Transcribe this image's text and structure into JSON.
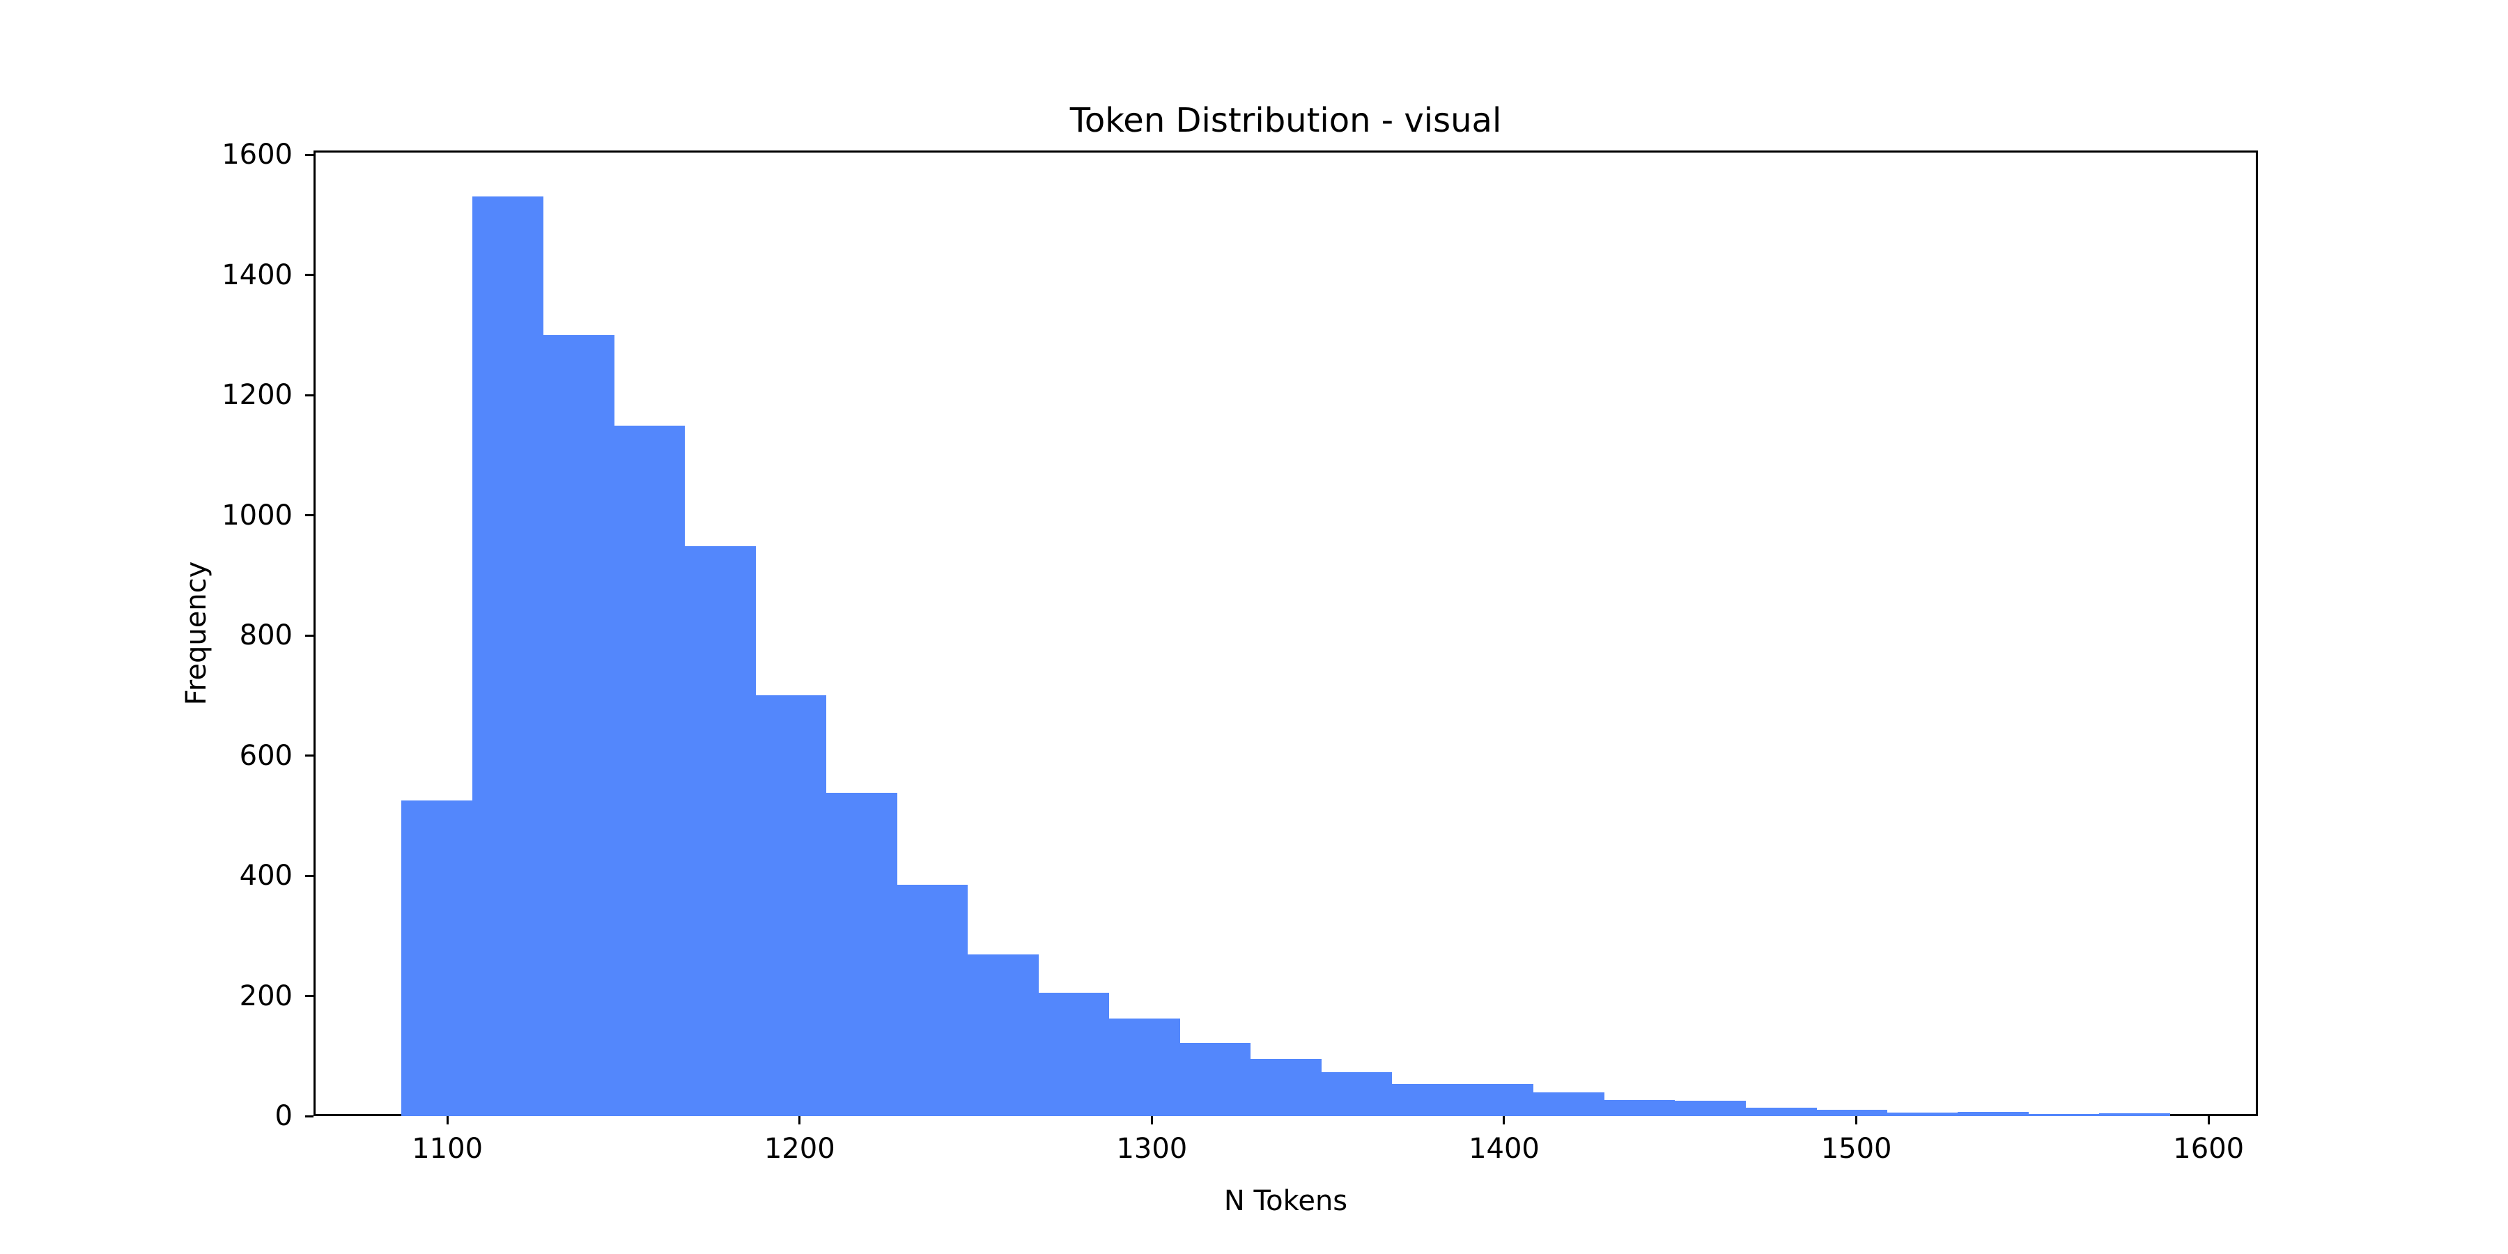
{
  "chart_data": {
    "type": "bar",
    "subtype": "histogram",
    "title": "Token Distribution - visual",
    "xlabel": "N Tokens",
    "ylabel": "Frequency",
    "xlim": [
      1062,
      1614
    ],
    "ylim": [
      0,
      1607
    ],
    "grid": false,
    "legend": null,
    "bar_color": "#5387FC",
    "x_ticks": [
      1100,
      1200,
      1300,
      1400,
      1500,
      1600
    ],
    "y_ticks": [
      0,
      200,
      400,
      600,
      800,
      1000,
      1200,
      1400,
      1600
    ],
    "bin_edges_start": 1087,
    "bin_width": 20.08,
    "bins": 25,
    "categories": [
      "1087-1107",
      "1107-1127",
      "1127-1147",
      "1147-1167",
      "1167-1187",
      "1187-1207",
      "1207-1227",
      "1227-1247",
      "1247-1267",
      "1267-1288",
      "1288-1308",
      "1308-1328",
      "1328-1348",
      "1348-1368",
      "1368-1388",
      "1388-1408",
      "1408-1428",
      "1428-1448",
      "1448-1468",
      "1468-1489",
      "1489-1509",
      "1509-1529",
      "1529-1549",
      "1549-1569",
      "1569-1589"
    ],
    "values": [
      525,
      1530,
      1300,
      1149,
      948,
      700,
      538,
      385,
      269,
      205,
      162,
      122,
      95,
      73,
      53,
      53,
      40,
      27,
      25,
      14,
      10,
      6,
      7,
      3,
      5
    ]
  },
  "labels": {
    "title": "Token Distribution - visual",
    "xlabel": "N Tokens",
    "ylabel": "Frequency",
    "x_tick_labels": [
      "1100",
      "1200",
      "1300",
      "1400",
      "1500",
      "1600"
    ],
    "y_tick_labels": [
      "0",
      "200",
      "400",
      "600",
      "800",
      "1000",
      "1200",
      "1400",
      "1600"
    ]
  }
}
